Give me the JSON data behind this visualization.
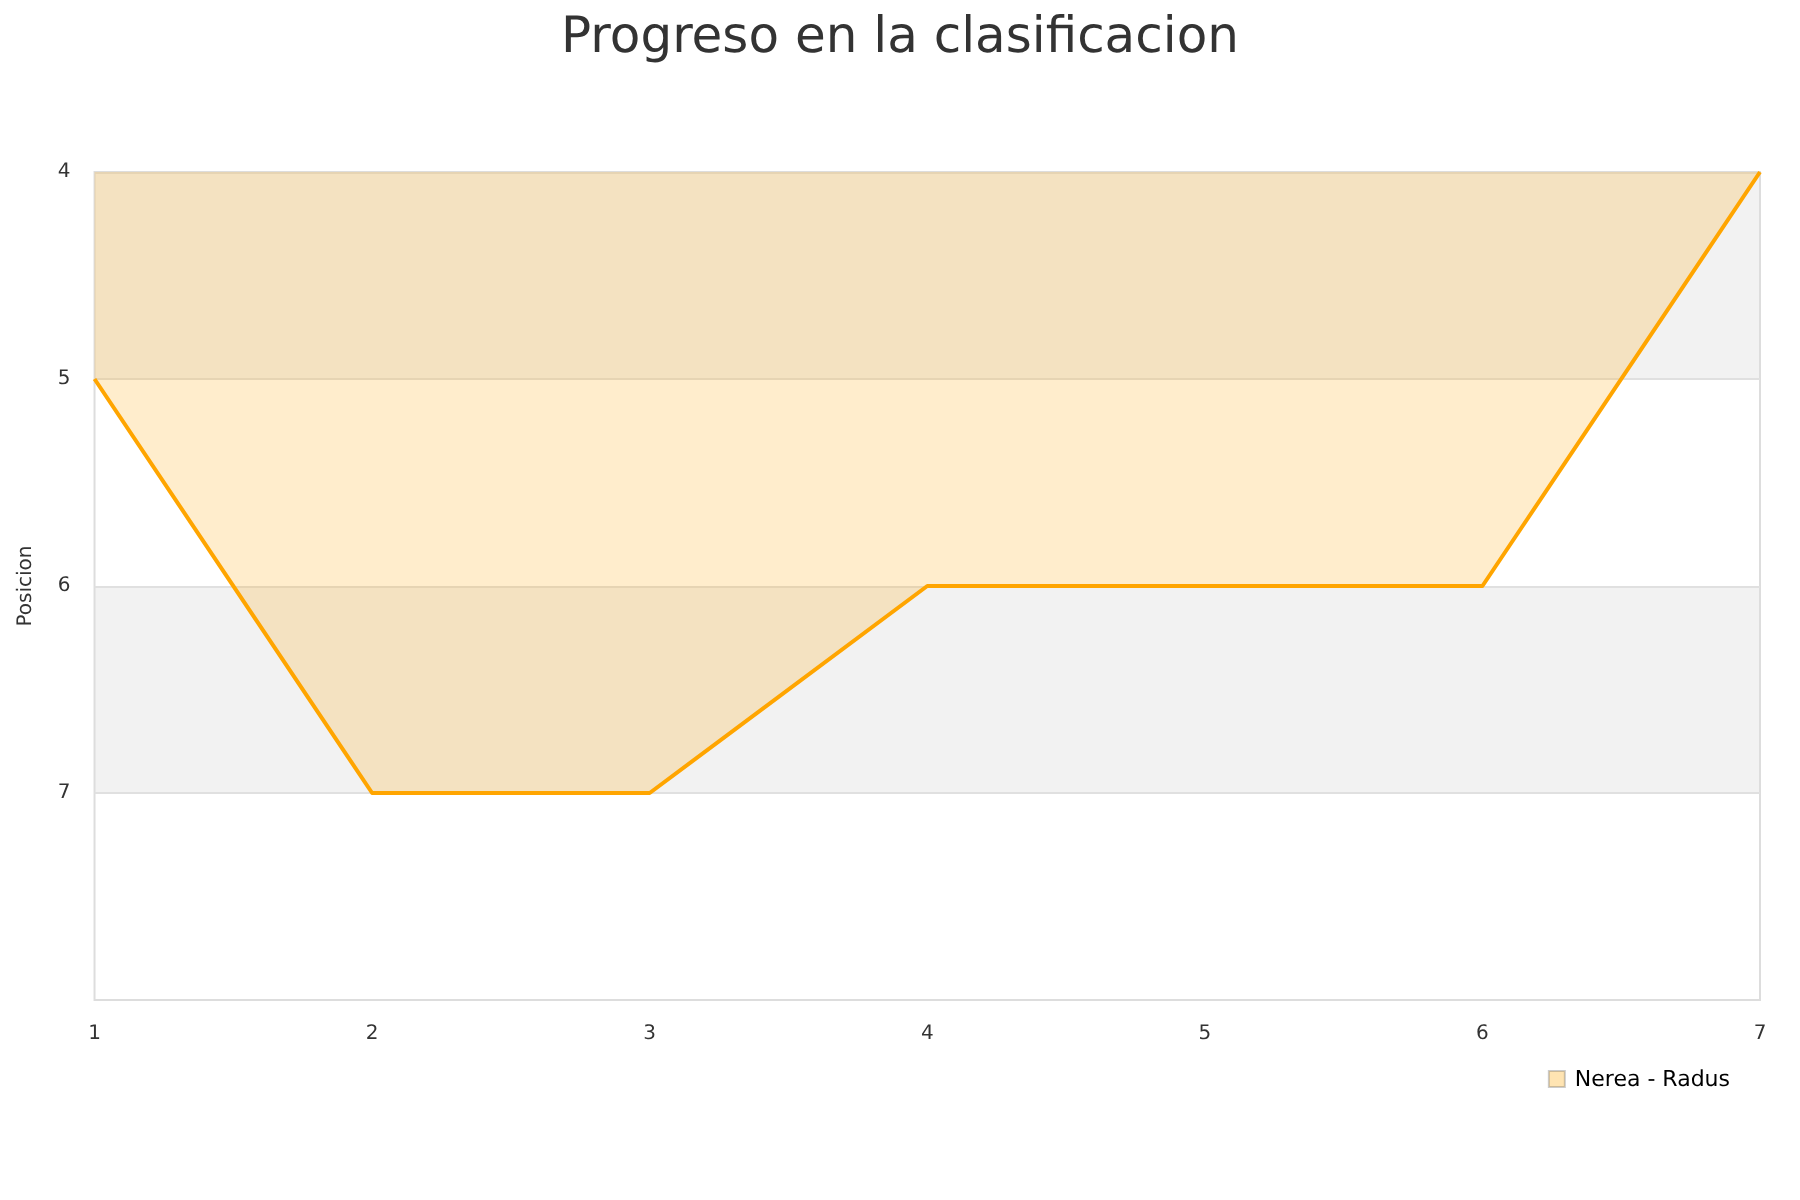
{
  "chart_data": {
    "type": "area",
    "title": "Progreso en la clasificacion",
    "ylabel": "Posicion",
    "x": [
      1,
      2,
      3,
      4,
      5,
      6,
      7
    ],
    "series": [
      {
        "name": "Nerea - Radus",
        "color": "#ffa500",
        "values": [
          5,
          7,
          7,
          6,
          6,
          6,
          4
        ]
      }
    ],
    "xlim": [
      1,
      7
    ],
    "xticks": [
      1,
      2,
      3,
      4,
      5,
      6,
      7
    ],
    "ylim": [
      8,
      4
    ],
    "yticks": [
      4,
      5,
      6,
      7
    ],
    "bands": [
      {
        "axis": "y",
        "from": 4,
        "to": 5,
        "color": "#f2f2f2"
      },
      {
        "axis": "y",
        "from": 6,
        "to": 7,
        "color": "#f2f2f2"
      }
    ],
    "grid": "y",
    "legend": "bottom right",
    "marker": "none",
    "line_style": "solid"
  }
}
